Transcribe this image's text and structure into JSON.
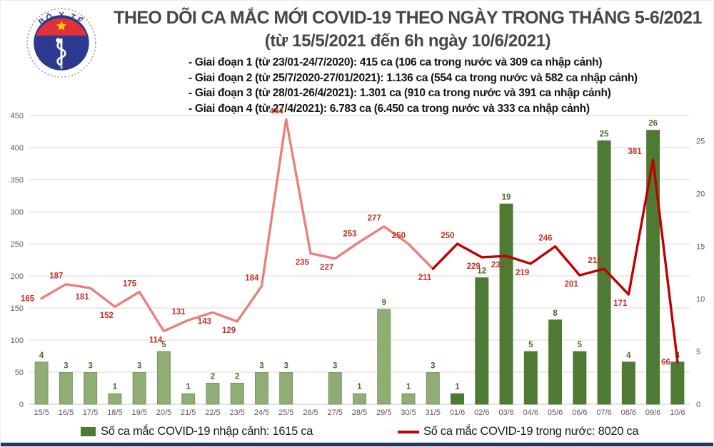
{
  "header": {
    "logo": {
      "top_text": "BỘ Y TẾ",
      "bottom_text": "MINISTRY OF HEALTH"
    },
    "title_line1": "THEO DÕI CA MẮC MỚI COVID-19 THEO NGÀY TRONG THÁNG 5-6/2021",
    "title_line2": "(từ 15/5/2021 đến 6h ngày 10/6/2021)",
    "bullets": [
      "- Giai đoạn 1 (từ 23/01-24/7/2020): 415 ca (106 ca trong nước và 309 ca nhập cảnh)",
      "- Giai đoạn 2 (từ 25/7/2020-27/01/2021): 1.136 ca (554 ca trong nước và 582 ca nhập cảnh)",
      "- Giai đoạn 3 (từ 28/01-26/4/2021): 1.301 ca (910 ca trong nước và 391 ca nhập cảnh)",
      "- Giai đoạn 4 (từ 27/4/2021): 6.783 ca (6.450 ca trong nước và 333 ca nhập cảnh)"
    ]
  },
  "chart_data": {
    "type": "bar+line combo",
    "categories": [
      "15/5",
      "16/5",
      "17/5",
      "18/5",
      "19/5",
      "20/5",
      "21/5",
      "22/5",
      "23/5",
      "24/5",
      "25/5",
      "26/5",
      "27/5",
      "28/5",
      "29/5",
      "30/5",
      "31/5",
      "01/6",
      "02/6",
      "03/6",
      "04/6",
      "05/6",
      "06/6",
      "07/6",
      "08/6",
      "09/6",
      "10/6"
    ],
    "series": [
      {
        "name": "Số ca mắc COVID-19 nhập cảnh",
        "type": "bar",
        "axis": "right",
        "values": [
          4,
          3,
          3,
          1,
          3,
          5,
          1,
          2,
          2,
          3,
          3,
          null,
          3,
          1,
          9,
          1,
          3,
          1,
          12,
          19,
          5,
          8,
          5,
          25,
          4,
          26,
          4
        ]
      },
      {
        "name": "Số ca mắc COVID-19 trong nước",
        "type": "line",
        "axis": "left",
        "values": [
          165,
          187,
          181,
          152,
          175,
          114,
          131,
          143,
          129,
          184,
          444,
          235,
          227,
          253,
          277,
          250,
          211,
          250,
          229,
          231,
          219,
          246,
          201,
          211,
          171,
          381,
          66
        ]
      }
    ],
    "left_axis": {
      "min": 0,
      "max": 450,
      "step": 50,
      "ticks": [
        0,
        50,
        100,
        150,
        200,
        250,
        300,
        350,
        400,
        450
      ]
    },
    "right_axis": {
      "min": 0,
      "max": 27.4,
      "ticks": [
        0,
        5,
        10,
        15,
        20,
        25
      ]
    },
    "grid": true,
    "legend_position": "bottom",
    "colors": {
      "bar_light": "#8fad74",
      "bar_light_border": "#72955b",
      "bar_dark": "#4e7a33",
      "bar_label": "#4d6a2d",
      "line_light": "#e9807e",
      "line_dark": "#c00000",
      "line_label": "#c23128",
      "axis_text": "#595959",
      "gridline": "#d9d9d9"
    },
    "bar_dark_from_index": 17,
    "line_dark_from_index": 16,
    "line_label_placement": [
      "l",
      "a",
      "b",
      "b",
      "a",
      "b",
      "a",
      "b",
      "b",
      "a",
      "a",
      "b",
      "b",
      "a",
      "a",
      "a",
      "b",
      "a",
      "b",
      "b",
      "b",
      "a",
      "b",
      "a",
      "b",
      "A",
      "l"
    ]
  },
  "legend": {
    "items": [
      {
        "label": "Số ca mắc COVID-19 nhập cảnh: 1615 ca"
      },
      {
        "label": "Số ca mắc COVID-19 trong nước: 8020 ca"
      }
    ]
  }
}
